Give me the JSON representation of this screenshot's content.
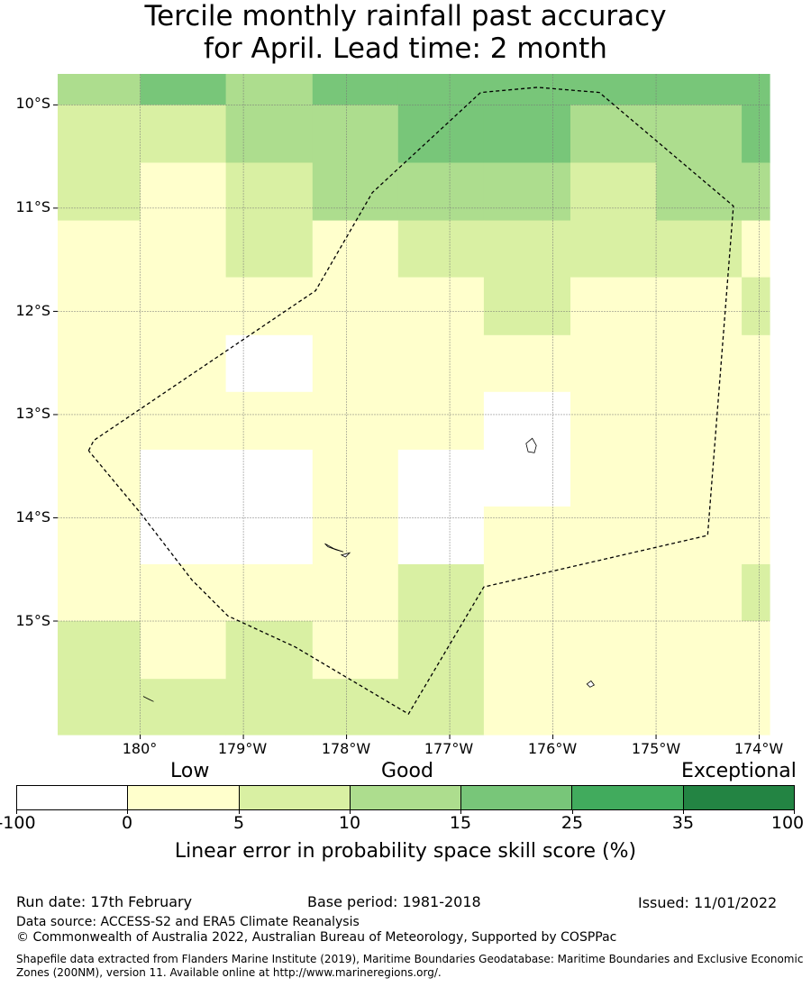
{
  "title": {
    "line1": "Tercile monthly rainfall past accuracy",
    "line2": "for April. Lead time: 2 month"
  },
  "map": {
    "lat_labels": [
      "10°S",
      "11°S",
      "12°S",
      "13°S",
      "14°S",
      "15°S"
    ],
    "lon_labels": [
      "180°",
      "179°W",
      "178°W",
      "177°W",
      "176°W",
      "175°W",
      "174°W"
    ],
    "lat_range": [
      -16.1,
      -9.7
    ],
    "lon_range": [
      -180.8,
      -173.9
    ],
    "lon_edges": [
      -180.8,
      -180.0,
      -179.17,
      -178.33,
      -177.5,
      -176.67,
      -175.83,
      -175.0,
      -174.17,
      -173.9
    ],
    "lat_edges": [
      -9.7,
      -10.0,
      -10.56,
      -11.12,
      -11.67,
      -12.23,
      -12.78,
      -13.34,
      -13.89,
      -14.45,
      -15.0,
      -15.56,
      -16.1
    ],
    "grid_classes": [
      [
        3,
        4,
        3,
        4,
        4,
        4,
        4,
        4,
        4
      ],
      [
        2,
        2,
        3,
        3,
        4,
        4,
        3,
        3,
        4
      ],
      [
        2,
        1,
        2,
        3,
        3,
        3,
        2,
        3,
        3
      ],
      [
        1,
        1,
        2,
        1,
        2,
        2,
        2,
        2,
        1
      ],
      [
        1,
        1,
        1,
        1,
        1,
        2,
        1,
        1,
        2
      ],
      [
        1,
        1,
        0,
        1,
        1,
        1,
        1,
        1,
        1
      ],
      [
        1,
        1,
        1,
        1,
        1,
        0,
        1,
        1,
        1
      ],
      [
        1,
        0,
        0,
        1,
        0,
        0,
        1,
        1,
        1
      ],
      [
        1,
        0,
        0,
        1,
        0,
        1,
        1,
        1,
        1
      ],
      [
        1,
        1,
        1,
        1,
        2,
        1,
        1,
        1,
        2
      ],
      [
        2,
        1,
        2,
        1,
        2,
        1,
        1,
        1,
        1
      ],
      [
        2,
        2,
        2,
        2,
        2,
        1,
        1,
        1,
        1
      ]
    ],
    "boundary_lonlat": [
      [
        -180.5,
        -13.35
      ],
      [
        -180.45,
        -13.25
      ],
      [
        -178.3,
        -11.8
      ],
      [
        -177.75,
        -10.85
      ],
      [
        -176.7,
        -9.88
      ],
      [
        -176.15,
        -9.83
      ],
      [
        -175.55,
        -9.88
      ],
      [
        -174.25,
        -10.98
      ],
      [
        -174.5,
        -14.17
      ],
      [
        -176.67,
        -14.67
      ],
      [
        -177.4,
        -15.9
      ],
      [
        -178.5,
        -15.25
      ],
      [
        -179.15,
        -14.95
      ],
      [
        -179.5,
        -14.6
      ],
      [
        -180.0,
        -13.95
      ],
      [
        -180.5,
        -13.35
      ]
    ],
    "islands_lonlat": [
      {
        "name": "island-1",
        "points": [
          [
            -176.2,
            -13.23
          ],
          [
            -176.16,
            -13.3
          ],
          [
            -176.18,
            -13.37
          ],
          [
            -176.24,
            -13.36
          ],
          [
            -176.26,
            -13.28
          ]
        ]
      },
      {
        "name": "island-2",
        "points": [
          [
            -178.21,
            -14.25
          ],
          [
            -178.12,
            -14.3
          ],
          [
            -178.03,
            -14.33
          ],
          [
            -178.1,
            -14.31
          ],
          [
            -178.18,
            -14.28
          ]
        ]
      },
      {
        "name": "island-3",
        "points": [
          [
            -178.05,
            -14.36
          ],
          [
            -177.97,
            -14.34
          ],
          [
            -178.01,
            -14.38
          ]
        ]
      },
      {
        "name": "island-4",
        "points": [
          [
            -175.63,
            -15.58
          ],
          [
            -175.6,
            -15.62
          ],
          [
            -175.64,
            -15.64
          ],
          [
            -175.67,
            -15.61
          ]
        ]
      },
      {
        "name": "island-5",
        "points": [
          [
            -179.97,
            -15.73
          ],
          [
            -179.87,
            -15.78
          ],
          [
            -179.91,
            -15.76
          ]
        ]
      }
    ]
  },
  "legend": {
    "categories": [
      "Low",
      "Good",
      "Exceptional"
    ],
    "colors": [
      "#ffffff",
      "#ffffcc",
      "#d9f0a3",
      "#addd8e",
      "#78c679",
      "#41ab5d",
      "#238443"
    ],
    "ticks": [
      "-100",
      "0",
      "5",
      "10",
      "15",
      "25",
      "35",
      "100"
    ],
    "title": "Linear error in probability space skill score (%)"
  },
  "footer": {
    "run_date": "Run date: 17th February",
    "base_period": "Base period: 1981-2018",
    "issued": "Issued: 11/01/2022",
    "data_source": "Data source: ACCESS-S2 and ERA5 Climate Reanalysis",
    "copyright": "© Commonwealth of Australia 2022, Australian Bureau of Meteorology, Supported by COSPPac",
    "shapefile_note": "Shapefile data extracted from Flanders Marine Institute (2019), Maritime Boundaries Geodatabase: Maritime Boundaries and Exclusive Economic Zones (200NM), version 11. Available online at http://www.marineregions.org/."
  }
}
